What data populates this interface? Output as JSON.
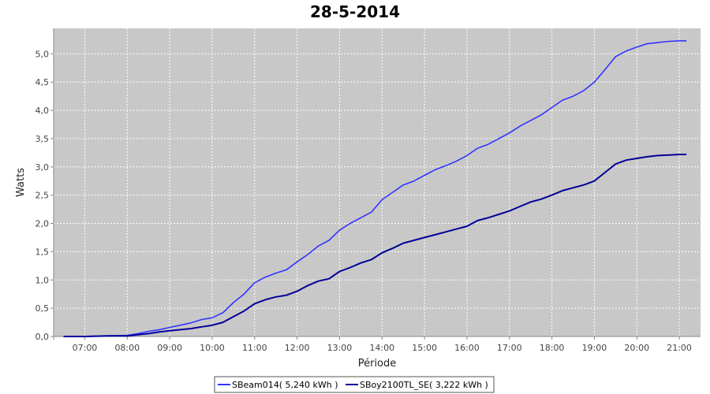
{
  "chart_data": {
    "type": "line",
    "title": "28-5-2014",
    "xlabel": "Période",
    "ylabel": "Watts",
    "ylim": [
      0,
      5.45
    ],
    "yticks": [
      "0,0",
      "0,5",
      "1,0",
      "1,5",
      "2,0",
      "2,5",
      "3,0",
      "3,5",
      "4,0",
      "4,5",
      "5,0"
    ],
    "xticks": [
      "07:00",
      "08:00",
      "09:00",
      "10:00",
      "11:00",
      "12:00",
      "13:00",
      "14:00",
      "15:00",
      "16:00",
      "17:00",
      "18:00",
      "19:00",
      "20:00",
      "21:00"
    ],
    "grid": true,
    "legend_position": "bottom",
    "series": [
      {
        "name": "SBeam014( 5,240 kWh )",
        "color": "#3333ff",
        "x": [
          "06:30",
          "07:00",
          "07:30",
          "08:00",
          "08:15",
          "08:30",
          "08:45",
          "09:00",
          "09:15",
          "09:30",
          "09:45",
          "10:00",
          "10:15",
          "10:30",
          "10:45",
          "11:00",
          "11:15",
          "11:30",
          "11:45",
          "12:00",
          "12:15",
          "12:30",
          "12:45",
          "13:00",
          "13:15",
          "13:30",
          "13:45",
          "14:00",
          "14:15",
          "14:30",
          "14:45",
          "15:00",
          "15:15",
          "15:30",
          "15:45",
          "16:00",
          "16:15",
          "16:30",
          "16:45",
          "17:00",
          "17:15",
          "17:30",
          "17:45",
          "18:00",
          "18:15",
          "18:30",
          "18:45",
          "19:00",
          "19:15",
          "19:30",
          "19:45",
          "20:00",
          "20:15",
          "20:30",
          "20:45",
          "21:00",
          "21:10"
        ],
        "values": [
          0.0,
          0.0,
          0.01,
          0.02,
          0.05,
          0.09,
          0.12,
          0.16,
          0.2,
          0.24,
          0.3,
          0.33,
          0.42,
          0.6,
          0.75,
          0.95,
          1.05,
          1.12,
          1.18,
          1.32,
          1.45,
          1.6,
          1.7,
          1.88,
          2.0,
          2.1,
          2.2,
          2.42,
          2.55,
          2.68,
          2.75,
          2.85,
          2.95,
          3.02,
          3.1,
          3.2,
          3.33,
          3.4,
          3.5,
          3.6,
          3.72,
          3.82,
          3.92,
          4.05,
          4.18,
          4.25,
          4.35,
          4.5,
          4.72,
          4.95,
          5.05,
          5.12,
          5.18,
          5.2,
          5.22,
          5.23,
          5.23
        ]
      },
      {
        "name": "SBoy2100TL_SE( 3,222 kWh )",
        "color": "#000099",
        "x": [
          "06:30",
          "07:00",
          "07:30",
          "08:00",
          "08:15",
          "08:30",
          "08:45",
          "09:00",
          "09:15",
          "09:30",
          "09:45",
          "10:00",
          "10:15",
          "10:30",
          "10:45",
          "11:00",
          "11:15",
          "11:30",
          "11:45",
          "12:00",
          "12:15",
          "12:30",
          "12:45",
          "13:00",
          "13:15",
          "13:30",
          "13:45",
          "14:00",
          "14:15",
          "14:30",
          "14:45",
          "15:00",
          "15:15",
          "15:30",
          "15:45",
          "16:00",
          "16:15",
          "16:30",
          "16:45",
          "17:00",
          "17:15",
          "17:30",
          "17:45",
          "18:00",
          "18:15",
          "18:30",
          "18:45",
          "19:00",
          "19:15",
          "19:30",
          "19:45",
          "20:00",
          "20:15",
          "20:30",
          "20:45",
          "21:00",
          "21:10"
        ],
        "values": [
          0.0,
          0.0,
          0.01,
          0.01,
          0.03,
          0.05,
          0.08,
          0.1,
          0.12,
          0.14,
          0.17,
          0.2,
          0.25,
          0.35,
          0.45,
          0.58,
          0.65,
          0.7,
          0.73,
          0.8,
          0.9,
          0.98,
          1.02,
          1.15,
          1.22,
          1.3,
          1.36,
          1.48,
          1.56,
          1.65,
          1.7,
          1.75,
          1.8,
          1.85,
          1.9,
          1.95,
          2.05,
          2.1,
          2.16,
          2.22,
          2.3,
          2.38,
          2.43,
          2.5,
          2.58,
          2.63,
          2.68,
          2.75,
          2.9,
          3.05,
          3.12,
          3.15,
          3.18,
          3.2,
          3.21,
          3.22,
          3.22
        ]
      }
    ]
  }
}
